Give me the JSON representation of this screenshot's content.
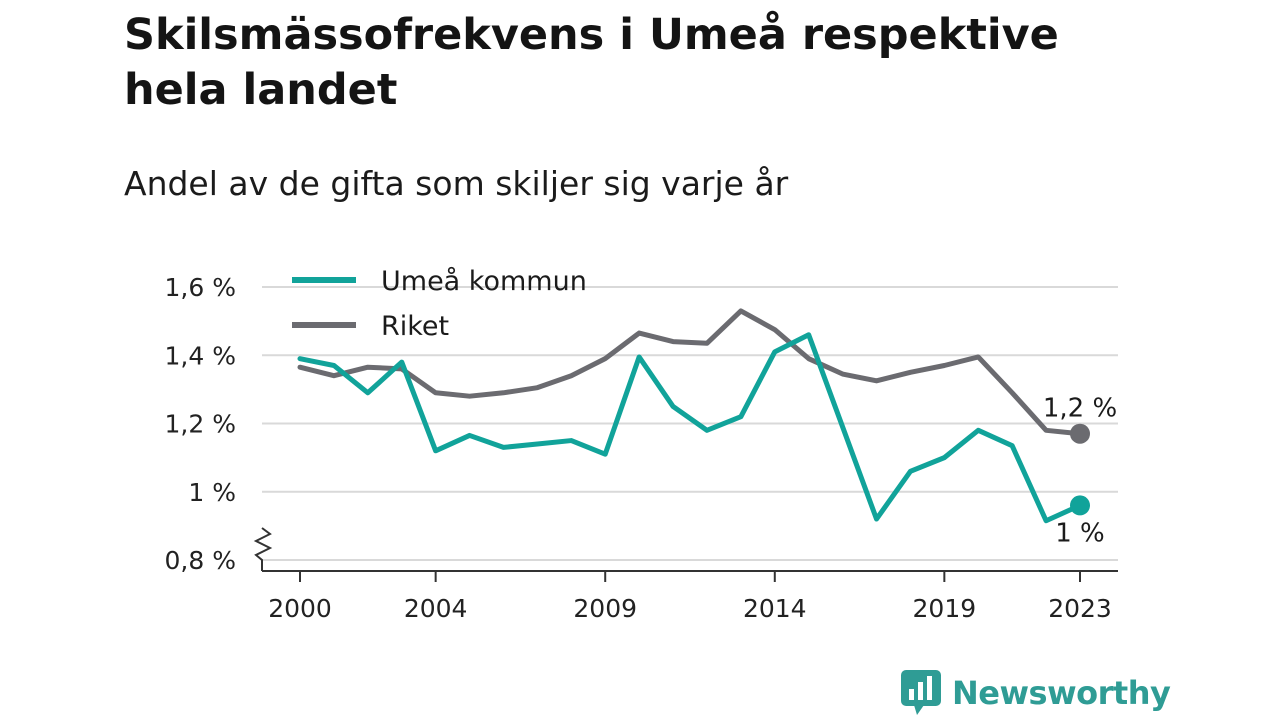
{
  "header": {
    "title": "Skilsmässofrekvens i Umeå respektive hela landet",
    "subtitle": "Andel av de gifta som skiljer sig varje år"
  },
  "brand": {
    "name": "Newsworthy",
    "icon": "newsworthy-logo-icon",
    "color": "#2f9c95"
  },
  "chart_data": {
    "type": "line",
    "x": [
      2000,
      2001,
      2002,
      2003,
      2004,
      2005,
      2006,
      2007,
      2008,
      2009,
      2010,
      2011,
      2012,
      2013,
      2014,
      2015,
      2016,
      2017,
      2018,
      2019,
      2020,
      2021,
      2022,
      2023
    ],
    "x_ticks": [
      2000,
      2004,
      2009,
      2014,
      2019,
      2023
    ],
    "x_tick_labels": [
      "2000",
      "2004",
      "2009",
      "2014",
      "2019",
      "2023"
    ],
    "y_ticks": [
      0.8,
      1.0,
      1.2,
      1.4,
      1.6
    ],
    "y_tick_labels": [
      "0,8 %",
      "1 %",
      "1,2 %",
      "1,4 %",
      "1,6 %"
    ],
    "ylim": [
      0.8,
      1.6
    ],
    "grid": true,
    "axis_break": true,
    "legend_position": "top-left",
    "series": [
      {
        "name": "Umeå kommun",
        "color": "#11a39a",
        "values": [
          1.39,
          1.37,
          1.29,
          1.38,
          1.12,
          1.165,
          1.13,
          1.14,
          1.15,
          1.11,
          1.395,
          1.25,
          1.18,
          1.22,
          1.41,
          1.46,
          1.19,
          0.92,
          1.06,
          1.1,
          1.18,
          1.135,
          0.915,
          0.96
        ],
        "end_label": "1 %"
      },
      {
        "name": "Riket",
        "color": "#6b6b70",
        "values": [
          1.365,
          1.34,
          1.365,
          1.36,
          1.29,
          1.28,
          1.29,
          1.305,
          1.34,
          1.39,
          1.465,
          1.44,
          1.435,
          1.53,
          1.475,
          1.39,
          1.345,
          1.325,
          1.35,
          1.37,
          1.395,
          1.29,
          1.18,
          1.17
        ],
        "end_label": "1,2 %"
      }
    ]
  }
}
